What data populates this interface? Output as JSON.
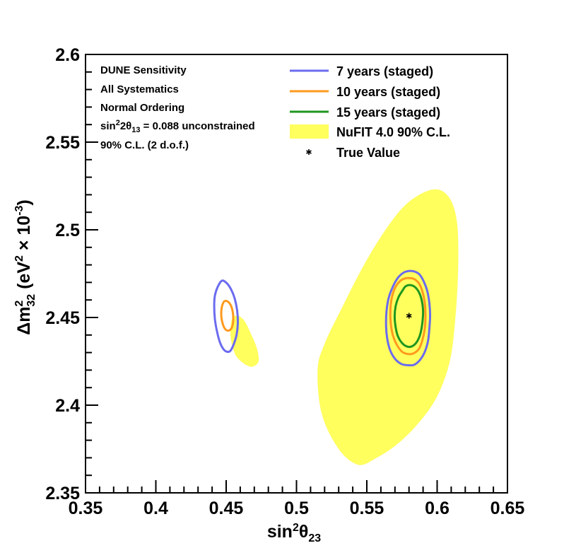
{
  "chart_data": {
    "type": "contour",
    "x_axis": {
      "label_main": "sin",
      "label_sup": "2",
      "label_theta": "θ",
      "label_sub": "23",
      "range": [
        0.35,
        0.65
      ],
      "ticks": [
        0.35,
        0.4,
        0.45,
        0.5,
        0.55,
        0.6,
        0.65
      ],
      "tick_labels": [
        "0.35",
        "0.4",
        "0.45",
        "0.5",
        "0.55",
        "0.6",
        "0.65"
      ]
    },
    "y_axis": {
      "label_delta": "Δm",
      "label_sup": "2",
      "label_sub": "32",
      "label_units_open": " (eV",
      "label_units_sup": "2",
      "label_units_times": " × 10",
      "label_units_exp": "-3",
      "label_units_close": ")",
      "range": [
        2.35,
        2.6
      ],
      "ticks": [
        2.35,
        2.4,
        2.45,
        2.5,
        2.55,
        2.6
      ],
      "tick_labels": [
        "2.35",
        "2.4",
        "2.45",
        "2.5",
        "2.55",
        "2.6"
      ]
    },
    "info_text": {
      "line1": "DUNE Sensitivity",
      "line2": "All Systematics",
      "line3": "Normal Ordering",
      "line4_pre": "sin",
      "line4_sup": "2",
      "line4_mid": "2θ",
      "line4_sub": "13",
      "line4_post": " = 0.088 unconstrained",
      "line5": "90% C.L. (2 d.o.f.)"
    },
    "legend": [
      {
        "label": "7 years (staged)",
        "kind": "line",
        "color": "#6b6bf0"
      },
      {
        "label": "10 years (staged)",
        "kind": "line",
        "color": "#ff9a1e"
      },
      {
        "label": "15 years (staged)",
        "kind": "line",
        "color": "#1f961f"
      },
      {
        "label": "NuFIT 4.0 90% C.L.",
        "kind": "fill",
        "color": "#ffff5e"
      },
      {
        "label": "True Value",
        "kind": "marker",
        "color": "#000000"
      }
    ],
    "true_value": {
      "x": 0.58,
      "y": 2.451
    },
    "nufit_regions": [
      [
        [
          0.597,
          2.523
        ],
        [
          0.608,
          2.519
        ],
        [
          0.614,
          2.505
        ],
        [
          0.615,
          2.48
        ],
        [
          0.613,
          2.45
        ],
        [
          0.609,
          2.425
        ],
        [
          0.6,
          2.405
        ],
        [
          0.587,
          2.39
        ],
        [
          0.572,
          2.378
        ],
        [
          0.557,
          2.37
        ],
        [
          0.544,
          2.366
        ],
        [
          0.53,
          2.375
        ],
        [
          0.518,
          2.395
        ],
        [
          0.515,
          2.42
        ],
        [
          0.52,
          2.435
        ],
        [
          0.532,
          2.455
        ],
        [
          0.548,
          2.48
        ],
        [
          0.565,
          2.502
        ],
        [
          0.58,
          2.516
        ]
      ],
      [
        [
          0.454,
          2.449
        ],
        [
          0.458,
          2.451
        ],
        [
          0.463,
          2.448
        ],
        [
          0.468,
          2.44
        ],
        [
          0.472,
          2.432
        ],
        [
          0.473,
          2.425
        ],
        [
          0.469,
          2.422
        ],
        [
          0.464,
          2.423
        ],
        [
          0.458,
          2.427
        ],
        [
          0.455,
          2.432
        ],
        [
          0.453,
          2.44
        ]
      ]
    ],
    "series": [
      {
        "name": "7 years (staged)",
        "color": "#6b6bf0",
        "contours": [
          [
            [
              0.58,
              2.4765
            ],
            [
              0.584,
              2.4762
            ],
            [
              0.5875,
              2.4745
            ],
            [
              0.5905,
              2.4705
            ],
            [
              0.593,
              2.465
            ],
            [
              0.5945,
              2.458
            ],
            [
              0.595,
              2.451
            ],
            [
              0.5945,
              2.444
            ],
            [
              0.5935,
              2.4365
            ],
            [
              0.591,
              2.43
            ],
            [
              0.5875,
              2.4255
            ],
            [
              0.5835,
              2.423
            ],
            [
              0.579,
              2.4228
            ],
            [
              0.5745,
              2.4235
            ],
            [
              0.57,
              2.4265
            ],
            [
              0.5665,
              2.4315
            ],
            [
              0.5645,
              2.438
            ],
            [
              0.5637,
              2.445
            ],
            [
              0.564,
              2.4535
            ],
            [
              0.5655,
              2.461
            ],
            [
              0.5685,
              2.4675
            ],
            [
              0.572,
              2.4725
            ],
            [
              0.576,
              2.4755
            ]
          ],
          [
            [
              0.447,
              2.471
            ],
            [
              0.4505,
              2.4695
            ],
            [
              0.4535,
              2.466
            ],
            [
              0.456,
              2.461
            ],
            [
              0.4578,
              2.454
            ],
            [
              0.4583,
              2.447
            ],
            [
              0.4575,
              2.4405
            ],
            [
              0.4555,
              2.435
            ],
            [
              0.453,
              2.431
            ],
            [
              0.4505,
              2.4305
            ],
            [
              0.448,
              2.432
            ],
            [
              0.4455,
              2.436
            ],
            [
              0.4435,
              2.442
            ],
            [
              0.442,
              2.449
            ],
            [
              0.4415,
              2.4565
            ],
            [
              0.442,
              2.4625
            ],
            [
              0.444,
              2.4675
            ]
          ]
        ]
      },
      {
        "name": "10 years (staged)",
        "color": "#ff9a1e",
        "contours": [
          [
            [
              0.58,
              2.4725
            ],
            [
              0.5835,
              2.472
            ],
            [
              0.587,
              2.4695
            ],
            [
              0.5895,
              2.465
            ],
            [
              0.5912,
              2.4585
            ],
            [
              0.5917,
              2.451
            ],
            [
              0.5912,
              2.4435
            ],
            [
              0.5895,
              2.437
            ],
            [
              0.587,
              2.432
            ],
            [
              0.583,
              2.4295
            ],
            [
              0.579,
              2.4292
            ],
            [
              0.575,
              2.4305
            ],
            [
              0.5713,
              2.4345
            ],
            [
              0.5685,
              2.44
            ],
            [
              0.567,
              2.447
            ],
            [
              0.5668,
              2.455
            ],
            [
              0.568,
              2.462
            ],
            [
              0.5705,
              2.4675
            ],
            [
              0.574,
              2.471
            ],
            [
              0.577,
              2.4722
            ]
          ],
          [
            [
              0.4495,
              2.4595
            ],
            [
              0.452,
              2.4585
            ],
            [
              0.454,
              2.4555
            ],
            [
              0.455,
              2.451
            ],
            [
              0.4548,
              2.4465
            ],
            [
              0.4535,
              2.4435
            ],
            [
              0.4513,
              2.4425
            ],
            [
              0.4492,
              2.4435
            ],
            [
              0.4475,
              2.4465
            ],
            [
              0.4465,
              2.451
            ],
            [
              0.4468,
              2.4555
            ],
            [
              0.448,
              2.4585
            ]
          ]
        ]
      },
      {
        "name": "15 years (staged)",
        "color": "#1f961f",
        "contours": [
          [
            [
              0.5805,
              2.4685
            ],
            [
              0.584,
              2.4675
            ],
            [
              0.587,
              2.4645
            ],
            [
              0.589,
              2.46
            ],
            [
              0.59,
              2.454
            ],
            [
              0.5895,
              2.447
            ],
            [
              0.588,
              2.4405
            ],
            [
              0.5855,
              2.436
            ],
            [
              0.582,
              2.4335
            ],
            [
              0.5785,
              2.4335
            ],
            [
              0.575,
              2.4355
            ],
            [
              0.572,
              2.4395
            ],
            [
              0.5705,
              2.4445
            ],
            [
              0.5698,
              2.4505
            ],
            [
              0.5705,
              2.4565
            ],
            [
              0.5725,
              2.4615
            ],
            [
              0.5755,
              2.4655
            ],
            [
              0.5775,
              2.4677
            ]
          ]
        ]
      }
    ]
  }
}
